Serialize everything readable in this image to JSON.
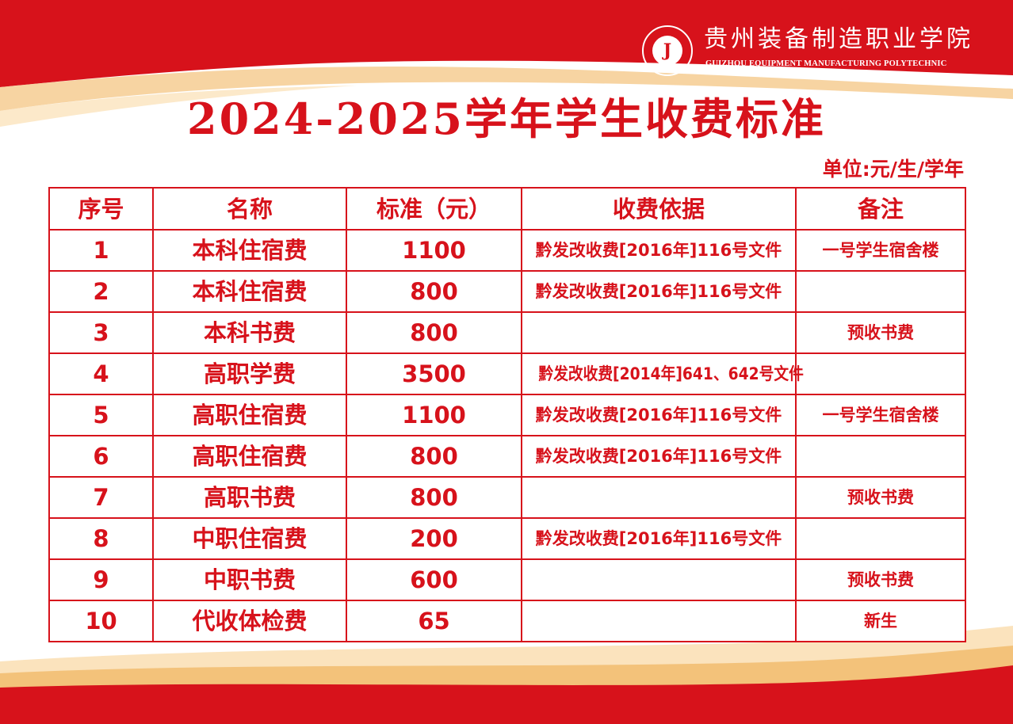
{
  "header": {
    "school_name_cn": "贵州装备制造职业学院",
    "school_name_en": "GUIZHOU EQUIPMENT MANUFACTURING POLYTECHNIC",
    "logo_text": "贵州装备制造职业学院"
  },
  "title": "2024-2025学年学生收费标准",
  "unit": "单位:元/生/学年",
  "colors": {
    "brand_red": "#d7121b",
    "accent_gold": "#f3c27a"
  },
  "table": {
    "headers": [
      "序号",
      "名称",
      "标准（元）",
      "收费依据",
      "备注"
    ],
    "rows": [
      [
        "1",
        "本科住宿费",
        "1100",
        "黔发改收费[2016年]116号文件",
        "一号学生宿舍楼"
      ],
      [
        "2",
        "本科住宿费",
        "800",
        "黔发改收费[2016年]116号文件",
        ""
      ],
      [
        "3",
        "本科书费",
        "800",
        "",
        "预收书费"
      ],
      [
        "4",
        "高职学费",
        "3500",
        "黔发改收费[2014年]641、642号文件",
        ""
      ],
      [
        "5",
        "高职住宿费",
        "1100",
        "黔发改收费[2016年]116号文件",
        "一号学生宿舍楼"
      ],
      [
        "6",
        "高职住宿费",
        "800",
        "黔发改收费[2016年]116号文件",
        ""
      ],
      [
        "7",
        "高职书费",
        "800",
        "",
        "预收书费"
      ],
      [
        "8",
        "中职住宿费",
        "200",
        "黔发改收费[2016年]116号文件",
        ""
      ],
      [
        "9",
        "中职书费",
        "600",
        "",
        "预收书费"
      ],
      [
        "10",
        "代收体检费",
        "65",
        "",
        "新生"
      ]
    ]
  }
}
